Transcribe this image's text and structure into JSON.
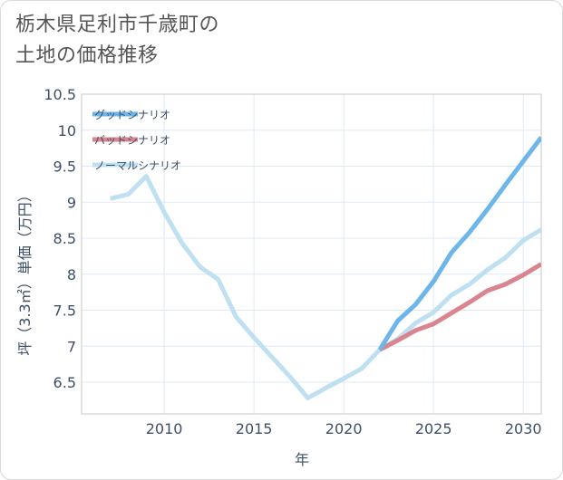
{
  "page": {
    "title_line1": "栃木県足利市千歳町の",
    "title_line2": "土地の価格推移"
  },
  "chart_data": {
    "type": "line",
    "xlabel": "年",
    "ylabel": "坪（3.3㎡）単価（万円）",
    "xlim": [
      2005.4,
      2031
    ],
    "ylim": [
      6.06,
      10.5
    ],
    "x_ticks": [
      2010,
      2015,
      2020,
      2025,
      2030
    ],
    "y_ticks": [
      6.5,
      7,
      7.5,
      8,
      8.5,
      9,
      9.5,
      10,
      10.5
    ],
    "x_tick_labels": [
      "2010",
      "2015",
      "2020",
      "2025",
      "2030"
    ],
    "y_tick_labels": [
      "6.5",
      "7",
      "7.5",
      "8",
      "8.5",
      "9",
      "9.5",
      "10",
      "10.5"
    ],
    "grid": true,
    "legend_position": "top-left",
    "series": [
      {
        "name": "グッドシナリオ",
        "color": "#6cb6ea",
        "x": [
          2022,
          2023,
          2024,
          2025,
          2026,
          2027,
          2028,
          2029,
          2030,
          2031
        ],
        "values": [
          6.95,
          7.35,
          7.58,
          7.9,
          8.3,
          8.58,
          8.9,
          9.24,
          9.57,
          9.9
        ]
      },
      {
        "name": "バッドシナリオ",
        "color": "#d9848f",
        "x": [
          2022,
          2023,
          2024,
          2025,
          2026,
          2027,
          2028,
          2029,
          2030,
          2031
        ],
        "values": [
          6.95,
          7.08,
          7.22,
          7.31,
          7.46,
          7.61,
          7.77,
          7.86,
          7.99,
          8.14
        ]
      },
      {
        "name": "ノーマルシナリオ",
        "color": "#bfe0f0",
        "x": [
          2007,
          2008,
          2009,
          2010,
          2011,
          2012,
          2013,
          2014,
          2015,
          2016,
          2017,
          2018,
          2019,
          2020,
          2021,
          2022,
          2023,
          2024,
          2025,
          2026,
          2027,
          2028,
          2029,
          2030,
          2031
        ],
        "values": [
          9.05,
          9.11,
          9.36,
          8.86,
          8.43,
          8.1,
          7.93,
          7.41,
          7.12,
          6.85,
          6.58,
          6.28,
          6.42,
          6.55,
          6.69,
          6.95,
          7.1,
          7.32,
          7.47,
          7.71,
          7.86,
          8.06,
          8.23,
          8.47,
          8.62
        ]
      }
    ]
  }
}
